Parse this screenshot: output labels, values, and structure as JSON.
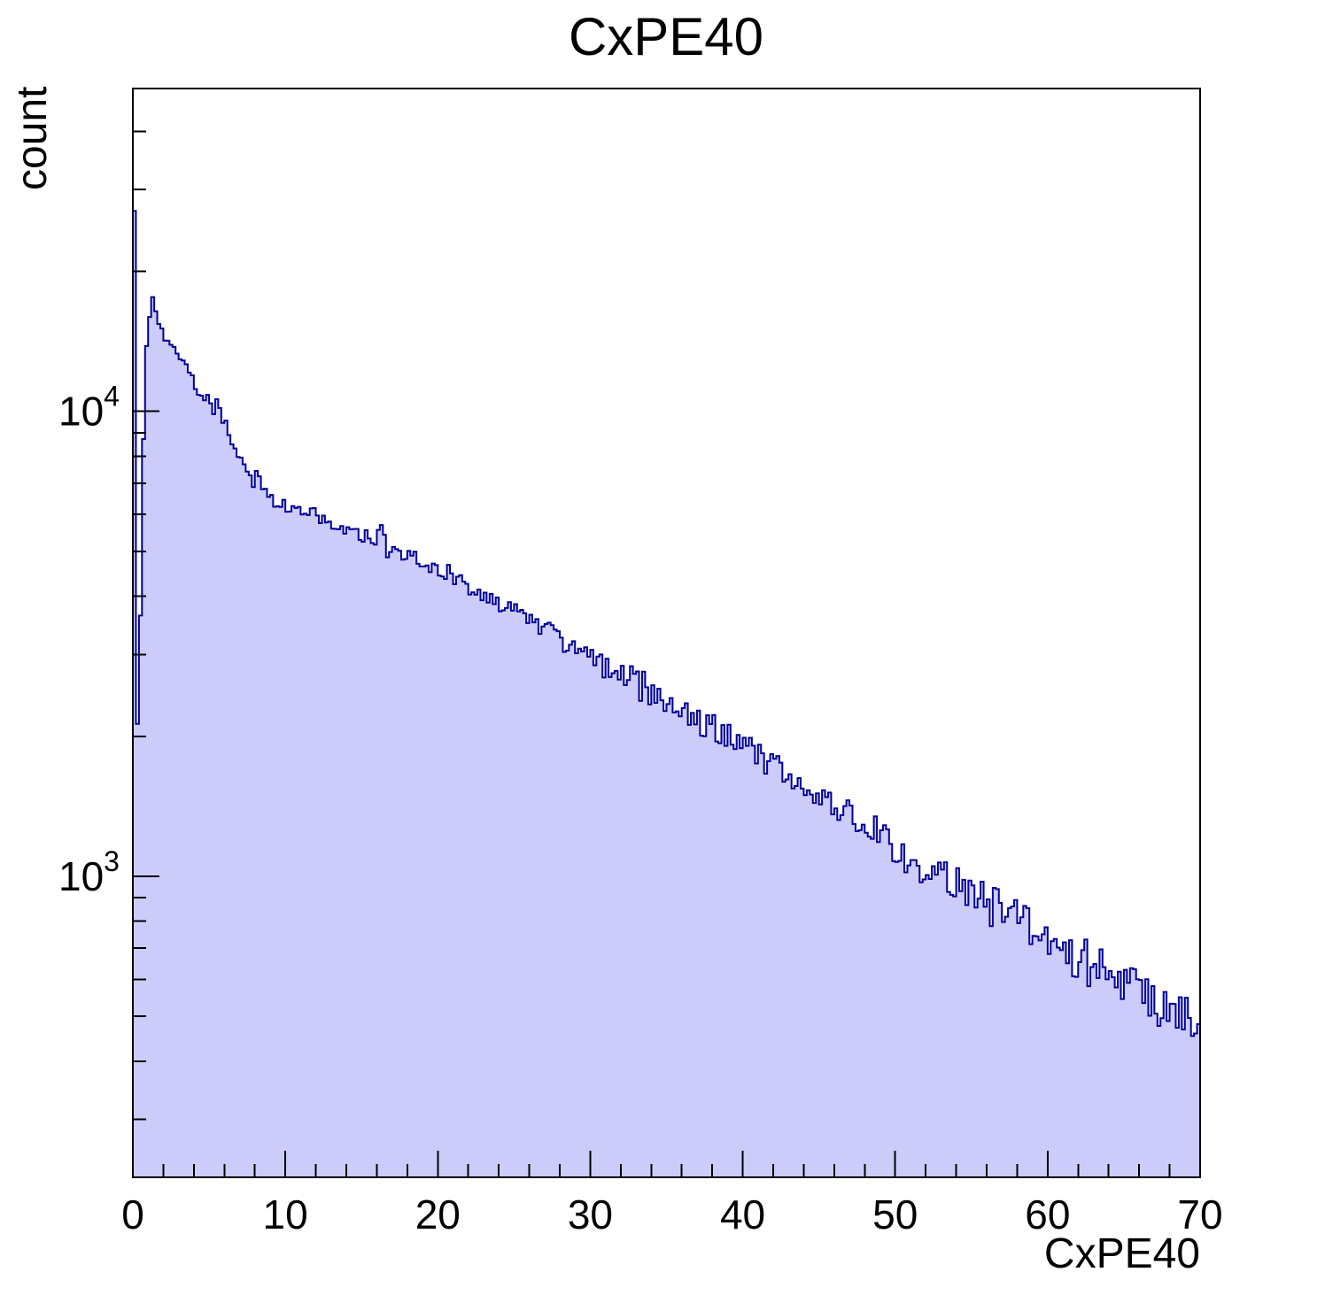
{
  "page": {
    "background": "#ffffff"
  },
  "chart_data": {
    "type": "bar",
    "subtype": "filled-step-histogram",
    "title": "CxPE40",
    "xlabel": "CxPE40",
    "ylabel": "count",
    "grid": false,
    "legend": "none",
    "x_axis": {
      "min": 0,
      "max": 70,
      "major_tick_step": 10,
      "minor_tick_step": 2,
      "tick_labels": [
        "0",
        "10",
        "20",
        "30",
        "40",
        "50",
        "60",
        "70"
      ]
    },
    "y_axis": {
      "scale": "log",
      "min": 225,
      "max": 49500,
      "major_ticks": [
        1000,
        10000
      ],
      "major_tick_labels": [
        "10^3",
        "10^4"
      ]
    },
    "bin_width": 0.2,
    "fluctuation_coeff": 3.0,
    "style": {
      "fill_color": "#ccccfa",
      "line_color": "#000099",
      "axis_color": "#000000"
    },
    "series": [
      {
        "name": "CxPE40",
        "anchor_points": [
          [
            0.1,
            27000
          ],
          [
            0.25,
            2100
          ],
          [
            0.35,
            2400
          ],
          [
            0.5,
            3600
          ],
          [
            0.7,
            8500
          ],
          [
            0.9,
            13500
          ],
          [
            1.1,
            16200
          ],
          [
            1.3,
            17600
          ],
          [
            1.5,
            16500
          ],
          [
            1.7,
            15600
          ],
          [
            1.9,
            14900
          ],
          [
            2.2,
            14300
          ],
          [
            2.6,
            13700
          ],
          [
            3.0,
            13100
          ],
          [
            3.5,
            12300
          ],
          [
            4.0,
            11500
          ],
          [
            4.3,
            10900
          ],
          [
            4.6,
            10400
          ],
          [
            4.9,
            10600
          ],
          [
            5.2,
            9900
          ],
          [
            5.5,
            10400
          ],
          [
            5.8,
            9700
          ],
          [
            6.1,
            9300
          ],
          [
            6.5,
            8600
          ],
          [
            7.0,
            7900
          ],
          [
            7.5,
            7400
          ],
          [
            8.0,
            7000
          ],
          [
            8.2,
            7800
          ],
          [
            8.4,
            6800
          ],
          [
            9.0,
            6500
          ],
          [
            9.5,
            6400
          ],
          [
            10.0,
            6300
          ],
          [
            11,
            6100
          ],
          [
            12,
            5950
          ],
          [
            13,
            5800
          ],
          [
            14,
            5650
          ],
          [
            15,
            5450
          ],
          [
            16,
            5300
          ],
          [
            16.5,
            5600
          ],
          [
            16.7,
            4700
          ],
          [
            17,
            5050
          ],
          [
            18,
            4900
          ],
          [
            19,
            4750
          ],
          [
            20,
            4600
          ],
          [
            21,
            4450
          ],
          [
            22,
            4250
          ],
          [
            23,
            4050
          ],
          [
            24,
            3900
          ],
          [
            25,
            3750
          ],
          [
            26,
            3550
          ],
          [
            27,
            3400
          ],
          [
            28,
            3250
          ],
          [
            29,
            3100
          ],
          [
            30,
            2950
          ],
          [
            31,
            2800
          ],
          [
            32,
            2700
          ],
          [
            33,
            2750
          ],
          [
            33.3,
            2350
          ],
          [
            33.5,
            2900
          ],
          [
            33.8,
            2250
          ],
          [
            34,
            2600
          ],
          [
            34.5,
            2400
          ],
          [
            35,
            2350
          ],
          [
            36,
            2250
          ],
          [
            37,
            2150
          ],
          [
            38,
            2100
          ],
          [
            39,
            2000
          ],
          [
            40,
            1900
          ],
          [
            41,
            1820
          ],
          [
            42,
            1740
          ],
          [
            43,
            1650
          ],
          [
            44,
            1560
          ],
          [
            45,
            1490
          ],
          [
            46,
            1420
          ],
          [
            47,
            1360
          ],
          [
            48,
            1290
          ],
          [
            49,
            1220
          ],
          [
            50,
            1160
          ],
          [
            51,
            1100
          ],
          [
            52,
            1050
          ],
          [
            53,
            1000
          ],
          [
            54,
            960
          ],
          [
            55,
            920
          ],
          [
            56,
            880
          ],
          [
            57,
            845
          ],
          [
            58,
            810
          ],
          [
            59,
            775
          ],
          [
            60,
            745
          ],
          [
            61,
            705
          ],
          [
            62,
            675
          ],
          [
            63,
            645
          ],
          [
            64,
            615
          ],
          [
            65,
            590
          ],
          [
            66,
            565
          ],
          [
            67,
            545
          ],
          [
            68,
            525
          ],
          [
            69,
            510
          ],
          [
            70,
            495
          ]
        ]
      }
    ]
  }
}
